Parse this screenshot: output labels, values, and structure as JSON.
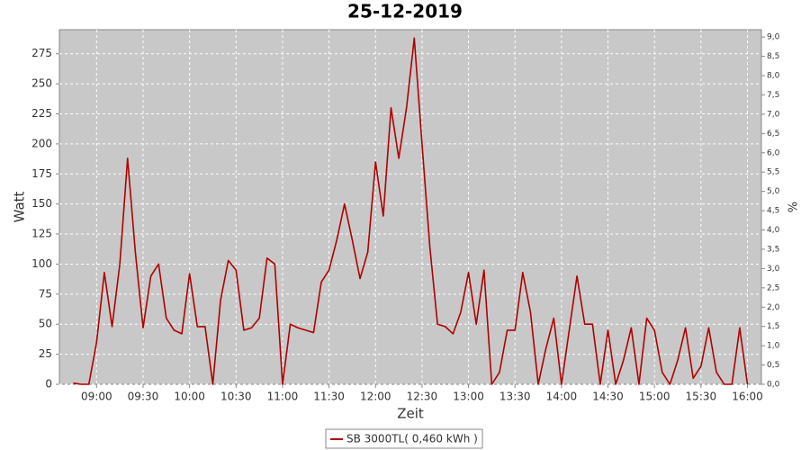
{
  "chart_data": {
    "type": "line",
    "title": "25-12-2019",
    "x_label": "Zeit",
    "y_label": "Watt",
    "y2_label": "%",
    "x": [
      "08:45",
      "08:50",
      "08:55",
      "09:00",
      "09:05",
      "09:10",
      "09:15",
      "09:20",
      "09:25",
      "09:30",
      "09:35",
      "09:40",
      "09:45",
      "09:50",
      "09:55",
      "10:00",
      "10:05",
      "10:10",
      "10:15",
      "10:20",
      "10:25",
      "10:30",
      "10:35",
      "10:40",
      "10:45",
      "10:50",
      "10:55",
      "11:00",
      "11:05",
      "11:10",
      "11:15",
      "11:20",
      "11:25",
      "11:30",
      "11:35",
      "11:40",
      "11:45",
      "11:50",
      "11:55",
      "12:00",
      "12:05",
      "12:10",
      "12:15",
      "12:20",
      "12:25",
      "12:30",
      "12:35",
      "12:40",
      "12:45",
      "12:50",
      "12:55",
      "13:00",
      "13:05",
      "13:10",
      "13:15",
      "13:20",
      "13:25",
      "13:30",
      "13:35",
      "13:40",
      "13:45",
      "13:50",
      "13:55",
      "14:00",
      "14:05",
      "14:10",
      "14:15",
      "14:20",
      "14:25",
      "14:30",
      "14:35",
      "14:40",
      "14:45",
      "14:50",
      "14:55",
      "15:00",
      "15:05",
      "15:10",
      "15:15",
      "15:20",
      "15:25",
      "15:30",
      "15:35",
      "15:40",
      "15:45",
      "15:50",
      "15:55",
      "16:00"
    ],
    "series": [
      {
        "name": "SB 3000TL( 0,460 kWh )",
        "color": "#b00000",
        "values": [
          1,
          0,
          0,
          35,
          93,
          48,
          100,
          188,
          110,
          47,
          90,
          100,
          55,
          45,
          42,
          92,
          48,
          48,
          0,
          70,
          103,
          95,
          45,
          47,
          55,
          105,
          100,
          0,
          50,
          47,
          45,
          43,
          85,
          95,
          120,
          150,
          120,
          88,
          110,
          185,
          140,
          230,
          188,
          230,
          288,
          200,
          115,
          50,
          48,
          42,
          60,
          93,
          50,
          95,
          0,
          10,
          45,
          45,
          93,
          60,
          0,
          30,
          55,
          0,
          45,
          90,
          50,
          50,
          0,
          45,
          0,
          20,
          47,
          0,
          55,
          45,
          10,
          0,
          20,
          47,
          5,
          15,
          47,
          10,
          0,
          0,
          47,
          0
        ]
      }
    ],
    "xlim": [
      "08:36",
      "16:09"
    ],
    "xticks": [
      "09:00",
      "09:30",
      "10:00",
      "10:30",
      "11:00",
      "11:30",
      "12:00",
      "12:30",
      "13:00",
      "13:30",
      "14:00",
      "14:30",
      "15:00",
      "15:30",
      "16:00"
    ],
    "ylim": [
      0,
      295
    ],
    "yticks": [
      0,
      25,
      50,
      75,
      100,
      125,
      150,
      175,
      200,
      225,
      250,
      275
    ],
    "y2lim": [
      0,
      9.19
    ],
    "y2ticks": [
      {
        "value": 0,
        "label": "0,0"
      },
      {
        "value": 0.5,
        "label": "0,5"
      },
      {
        "value": 1,
        "label": "1,0"
      },
      {
        "value": 1.5,
        "label": "1,5"
      },
      {
        "value": 2,
        "label": "2,0"
      },
      {
        "value": 2.5,
        "label": "2,5"
      },
      {
        "value": 3,
        "label": "3,0"
      },
      {
        "value": 3.5,
        "label": "3,5"
      },
      {
        "value": 4,
        "label": "4,0"
      },
      {
        "value": 4.5,
        "label": "4,5"
      },
      {
        "value": 5,
        "label": "5,0"
      },
      {
        "value": 5.5,
        "label": "5,5"
      },
      {
        "value": 6,
        "label": "6,0"
      },
      {
        "value": 6.5,
        "label": "6,5"
      },
      {
        "value": 7,
        "label": "7,0"
      },
      {
        "value": 7.5,
        "label": "7,5"
      },
      {
        "value": 8,
        "label": "8,0"
      },
      {
        "value": 8.5,
        "label": "8,5"
      },
      {
        "value": 9,
        "label": "9,0"
      }
    ],
    "grid": true
  }
}
